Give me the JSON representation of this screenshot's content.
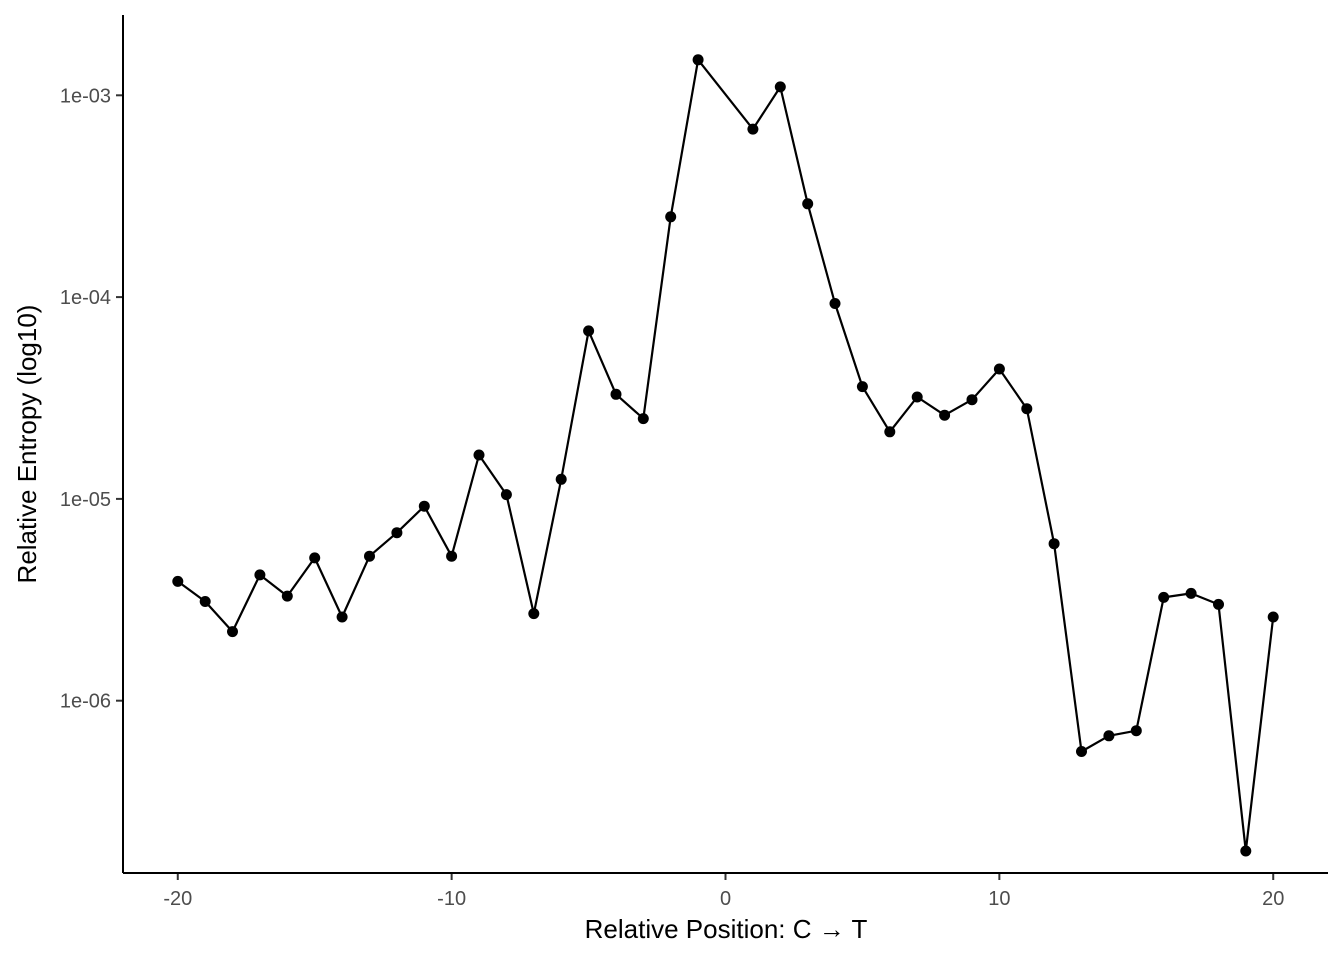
{
  "chart_data": {
    "type": "line",
    "xlabel": "Relative Position: C → T",
    "ylabel": "Relative Entropy (log10)",
    "y_scale": "log10",
    "grid": false,
    "xlim": [
      -22,
      22
    ],
    "ylim": [
      1.4e-07,
      0.0025
    ],
    "x_ticks": [
      -20,
      -10,
      0,
      10,
      20
    ],
    "x_tick_labels": [
      "-20",
      "-10",
      "0",
      "10",
      "20"
    ],
    "y_ticks": [
      1e-06,
      1e-05,
      0.0001,
      0.001
    ],
    "y_tick_labels": [
      "1e-06",
      "1e-05",
      "1e-04",
      "1e-03"
    ],
    "series": [
      {
        "x": [
          -20,
          -19,
          -18,
          -17,
          -16,
          -15,
          -14,
          -13,
          -12,
          -11,
          -10,
          -9,
          -8,
          -7,
          -6,
          -5,
          -4,
          -3,
          -2,
          -1,
          1,
          2,
          3,
          4,
          5,
          6,
          7,
          8,
          9,
          10,
          11,
          12,
          13,
          14,
          15,
          16,
          17,
          18,
          19,
          20
        ],
        "y": [
          3.9e-06,
          3.1e-06,
          2.2e-06,
          4.2e-06,
          3.3e-06,
          5.1e-06,
          2.6e-06,
          5.2e-06,
          6.8e-06,
          9.2e-06,
          5.2e-06,
          1.65e-05,
          1.05e-05,
          2.7e-06,
          1.25e-05,
          6.8e-05,
          3.3e-05,
          2.5e-05,
          0.00025,
          0.0015,
          0.00068,
          0.0011,
          0.00029,
          9.3e-05,
          3.6e-05,
          2.15e-05,
          3.2e-05,
          2.6e-05,
          3.1e-05,
          4.4e-05,
          2.8e-05,
          6e-06,
          5.6e-07,
          6.7e-07,
          7.1e-07,
          3.25e-06,
          3.4e-06,
          3e-06,
          1.8e-07,
          2.6e-06
        ]
      }
    ]
  }
}
